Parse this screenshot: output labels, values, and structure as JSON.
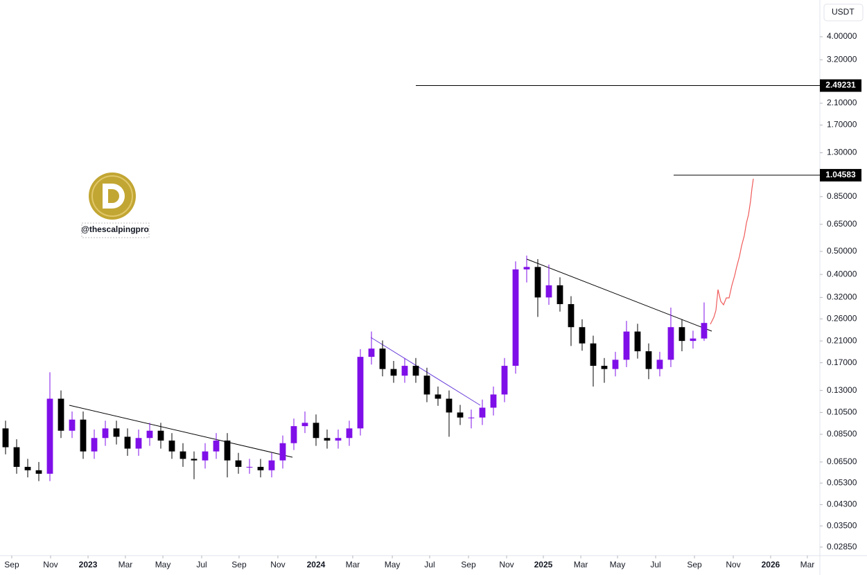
{
  "chart_data": {
    "type": "candlestick",
    "currency": "USDT",
    "watermark": "@thescalpingpro",
    "log_scale": true,
    "colors": {
      "up": "#7f0fe8",
      "down": "#000000"
    },
    "open": [
      0.09,
      0.075,
      0.062,
      0.06,
      0.058,
      0.12,
      0.088,
      0.098,
      0.072,
      0.082,
      0.09,
      0.083,
      0.074,
      0.082,
      0.088,
      0.08,
      0.072,
      0.067,
      0.066,
      0.072,
      0.08,
      0.066,
      0.062,
      0.062,
      0.06,
      0.066,
      0.078,
      0.092,
      0.095,
      0.082,
      0.08,
      0.082,
      0.09,
      0.18,
      0.195,
      0.16,
      0.15,
      0.165,
      0.15,
      0.125,
      0.12,
      0.105,
      0.1,
      0.1,
      0.11,
      0.125,
      0.165,
      0.42,
      0.43,
      0.32,
      0.36,
      0.3,
      0.24,
      0.205,
      0.165,
      0.16,
      0.175,
      0.23,
      0.19,
      0.16,
      0.175,
      0.24,
      0.21,
      0.215
    ],
    "high": [
      0.097,
      0.081,
      0.067,
      0.065,
      0.155,
      0.13,
      0.106,
      0.106,
      0.089,
      0.097,
      0.097,
      0.09,
      0.089,
      0.095,
      0.095,
      0.086,
      0.078,
      0.072,
      0.078,
      0.086,
      0.086,
      0.071,
      0.067,
      0.067,
      0.071,
      0.084,
      0.099,
      0.106,
      0.103,
      0.089,
      0.089,
      0.097,
      0.194,
      0.23,
      0.211,
      0.173,
      0.178,
      0.178,
      0.162,
      0.135,
      0.13,
      0.113,
      0.108,
      0.119,
      0.135,
      0.178,
      0.454,
      0.48,
      0.464,
      0.44,
      0.389,
      0.324,
      0.259,
      0.221,
      0.178,
      0.189,
      0.255,
      0.248,
      0.205,
      0.189,
      0.29,
      0.259,
      0.232,
      0.305
    ],
    "low": [
      0.07,
      0.058,
      0.056,
      0.054,
      0.054,
      0.082,
      0.082,
      0.067,
      0.067,
      0.076,
      0.077,
      0.069,
      0.069,
      0.076,
      0.074,
      0.067,
      0.062,
      0.055,
      0.061,
      0.067,
      0.056,
      0.058,
      0.058,
      0.056,
      0.056,
      0.061,
      0.073,
      0.086,
      0.076,
      0.074,
      0.074,
      0.076,
      0.084,
      0.167,
      0.149,
      0.14,
      0.14,
      0.14,
      0.116,
      0.112,
      0.083,
      0.093,
      0.09,
      0.093,
      0.102,
      0.116,
      0.153,
      0.37,
      0.265,
      0.298,
      0.279,
      0.2,
      0.191,
      0.135,
      0.14,
      0.149,
      0.163,
      0.177,
      0.145,
      0.149,
      0.163,
      0.19,
      0.195,
      0.21
    ],
    "close": [
      0.075,
      0.062,
      0.06,
      0.058,
      0.12,
      0.088,
      0.098,
      0.072,
      0.082,
      0.09,
      0.083,
      0.074,
      0.082,
      0.088,
      0.08,
      0.072,
      0.067,
      0.066,
      0.072,
      0.08,
      0.066,
      0.062,
      0.062,
      0.06,
      0.066,
      0.078,
      0.092,
      0.095,
      0.082,
      0.08,
      0.082,
      0.09,
      0.18,
      0.195,
      0.16,
      0.15,
      0.165,
      0.15,
      0.125,
      0.12,
      0.105,
      0.1,
      0.1,
      0.11,
      0.125,
      0.165,
      0.42,
      0.43,
      0.32,
      0.36,
      0.3,
      0.24,
      0.205,
      0.165,
      0.16,
      0.175,
      0.23,
      0.19,
      0.16,
      0.175,
      0.24,
      0.21,
      0.215,
      0.25
    ],
    "levels": [
      {
        "value": 2.49231,
        "label": "2.49231"
      },
      {
        "value": 1.04583,
        "label": "1.04583"
      }
    ],
    "ylim": [
      0.0266,
      5.71
    ],
    "yticks": [
      {
        "value": 4,
        "label": "4.00000"
      },
      {
        "value": 3.2,
        "label": "3.20000"
      },
      {
        "value": 2.1,
        "label": "2.10000"
      },
      {
        "value": 1.7,
        "label": "1.70000"
      },
      {
        "value": 1.3,
        "label": "1.30000"
      },
      {
        "value": 0.85,
        "label": "0.85000"
      },
      {
        "value": 0.65,
        "label": "0.65000"
      },
      {
        "value": 0.5,
        "label": "0.50000"
      },
      {
        "value": 0.4,
        "label": "0.40000"
      },
      {
        "value": 0.32,
        "label": "0.32000"
      },
      {
        "value": 0.26,
        "label": "0.26000"
      },
      {
        "value": 0.21,
        "label": "0.21000"
      },
      {
        "value": 0.17,
        "label": "0.17000"
      },
      {
        "value": 0.13,
        "label": "0.13000"
      },
      {
        "value": 0.105,
        "label": "0.10500"
      },
      {
        "value": 0.085,
        "label": "0.08500"
      },
      {
        "value": 0.065,
        "label": "0.06500"
      },
      {
        "value": 0.053,
        "label": "0.05300"
      },
      {
        "value": 0.043,
        "label": "0.04300"
      },
      {
        "value": 0.035,
        "label": "0.03500"
      },
      {
        "value": 0.0285,
        "label": "0.02850"
      }
    ],
    "xlim": [
      -0.5,
      73.44
    ],
    "xticks": [
      {
        "value": 0.56,
        "label": "Sep"
      },
      {
        "value": 4.06,
        "label": "Nov"
      },
      {
        "value": 7.44,
        "label": "2023"
      },
      {
        "value": 10.81,
        "label": "Mar"
      },
      {
        "value": 14.19,
        "label": "May"
      },
      {
        "value": 17.69,
        "label": "Jul"
      },
      {
        "value": 21.06,
        "label": "Sep"
      },
      {
        "value": 24.56,
        "label": "Nov"
      },
      {
        "value": 28,
        "label": "2024"
      },
      {
        "value": 31.31,
        "label": "Mar"
      },
      {
        "value": 34.88,
        "label": "May"
      },
      {
        "value": 38.25,
        "label": "Jul"
      },
      {
        "value": 41.75,
        "label": "Sep"
      },
      {
        "value": 45.19,
        "label": "Nov"
      },
      {
        "value": 48.5,
        "label": "2025"
      },
      {
        "value": 51.88,
        "label": "Mar"
      },
      {
        "value": 55.19,
        "label": "May"
      },
      {
        "value": 58.63,
        "label": "Jul"
      },
      {
        "value": 62.13,
        "label": "Sep"
      },
      {
        "value": 65.63,
        "label": "Nov"
      },
      {
        "value": 69,
        "label": "2026"
      },
      {
        "value": 72.31,
        "label": "Mar"
      }
    ]
  }
}
